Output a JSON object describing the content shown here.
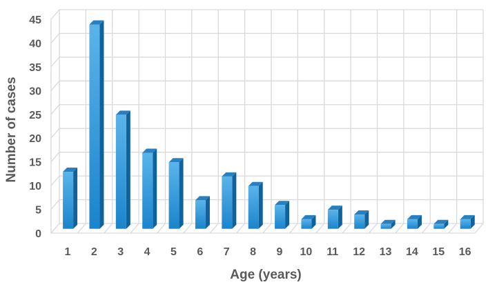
{
  "chart_data": {
    "type": "bar",
    "title": "",
    "xlabel": "Age (years)",
    "ylabel": "Number of cases",
    "categories": [
      "1",
      "2",
      "3",
      "4",
      "5",
      "6",
      "7",
      "8",
      "9",
      "10",
      "11",
      "12",
      "13",
      "14",
      "15",
      "16"
    ],
    "values": [
      12,
      43,
      24,
      16,
      14,
      6,
      11,
      9,
      5,
      2,
      4,
      3,
      1,
      2,
      1,
      2
    ],
    "ylim": [
      0,
      45
    ],
    "yticks": [
      0,
      5,
      10,
      15,
      20,
      25,
      30,
      35,
      40,
      45
    ],
    "grid": true,
    "legend": "none",
    "style": "3d-column",
    "colors": {
      "bar_front_top": "#5ab4ea",
      "bar_front_bottom": "#1a84cb",
      "bar_side": "#10629c",
      "bar_top": "#2a7fbf",
      "grid": "#d9d9d9",
      "text": "#595959"
    }
  }
}
